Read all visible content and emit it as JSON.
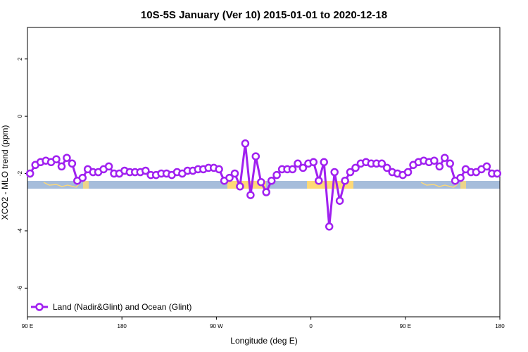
{
  "chart_data": {
    "type": "line",
    "title": "10S-5S January (Ver 10)   2015-01-01 to 2020-12-18",
    "xlabel": "Longitude (deg E)",
    "ylabel": "XCO2 - MLO trend (ppm)",
    "xlim": [
      90,
      450
    ],
    "ylim": [
      -7,
      3.1
    ],
    "x_ticks": [
      {
        "value": 90,
        "label": "90 E"
      },
      {
        "value": 162,
        "label": "180"
      },
      {
        "value": 234,
        "label": "90 W"
      },
      {
        "value": 306,
        "label": "0"
      },
      {
        "value": 378,
        "label": "90 E"
      },
      {
        "value": 450,
        "label": "180"
      }
    ],
    "y_ticks": [
      {
        "value": 2,
        "label": "2"
      },
      {
        "value": 0,
        "label": "0"
      },
      {
        "value": -2,
        "label": "-2"
      },
      {
        "value": -4,
        "label": "-4"
      },
      {
        "value": -6,
        "label": "-6"
      }
    ],
    "colors": {
      "series": "#a020f0",
      "ocean_band": "#a6bddb",
      "land_band": "#fed976"
    },
    "grid": false,
    "legend_position": "bottom-left",
    "series": [
      {
        "name": "Land (Nadir&Glint) and Ocean (Glint)",
        "x": [
          92,
          96,
          100,
          104,
          108,
          112,
          116,
          120,
          124,
          128,
          132,
          136,
          140,
          144,
          148,
          152,
          156,
          160,
          164,
          168,
          172,
          176,
          180,
          184,
          188,
          192,
          196,
          200,
          204,
          208,
          212,
          216,
          220,
          224,
          228,
          232,
          236,
          240,
          244,
          248,
          252,
          256,
          260,
          264,
          268,
          272,
          276,
          280,
          284,
          288,
          292,
          296,
          300,
          304,
          308,
          312,
          316,
          320,
          324,
          328,
          332,
          336,
          340,
          344,
          348,
          352,
          356,
          360,
          364,
          368,
          372,
          376,
          380,
          384,
          388,
          392,
          396,
          400,
          404,
          408,
          412,
          416,
          420,
          424,
          428,
          432,
          436,
          440,
          444,
          448
        ],
        "y": [
          -2.0,
          -1.7,
          -1.6,
          -1.55,
          -1.6,
          -1.5,
          -1.75,
          -1.45,
          -1.65,
          -2.25,
          -2.15,
          -1.85,
          -1.95,
          -1.95,
          -1.85,
          -1.75,
          -2.0,
          -2.0,
          -1.9,
          -1.95,
          -1.95,
          -1.95,
          -1.9,
          -2.05,
          -2.05,
          -2.0,
          -2.0,
          -2.05,
          -1.95,
          -2.0,
          -1.9,
          -1.9,
          -1.85,
          -1.85,
          -1.8,
          -1.8,
          -1.85,
          -2.25,
          -2.15,
          -2.0,
          -2.45,
          -0.95,
          -2.75,
          -1.4,
          -2.3,
          -2.65,
          -2.25,
          -2.05,
          -1.85,
          -1.85,
          -1.85,
          -1.65,
          -1.8,
          -1.65,
          -1.6,
          -2.25,
          -1.6,
          -3.85,
          -1.95,
          -2.95,
          -2.25,
          -1.95,
          -1.8,
          -1.65,
          -1.6,
          -1.65,
          -1.65,
          -1.65,
          -1.8,
          -1.95,
          -2.0,
          -2.05,
          -1.95,
          -1.7,
          -1.6,
          -1.55,
          -1.6,
          -1.55,
          -1.75,
          -1.45,
          -1.65,
          -2.25,
          -2.15,
          -1.85,
          -1.95,
          -1.95,
          -1.85,
          -1.75,
          -2.0,
          -2.0
        ]
      }
    ]
  }
}
